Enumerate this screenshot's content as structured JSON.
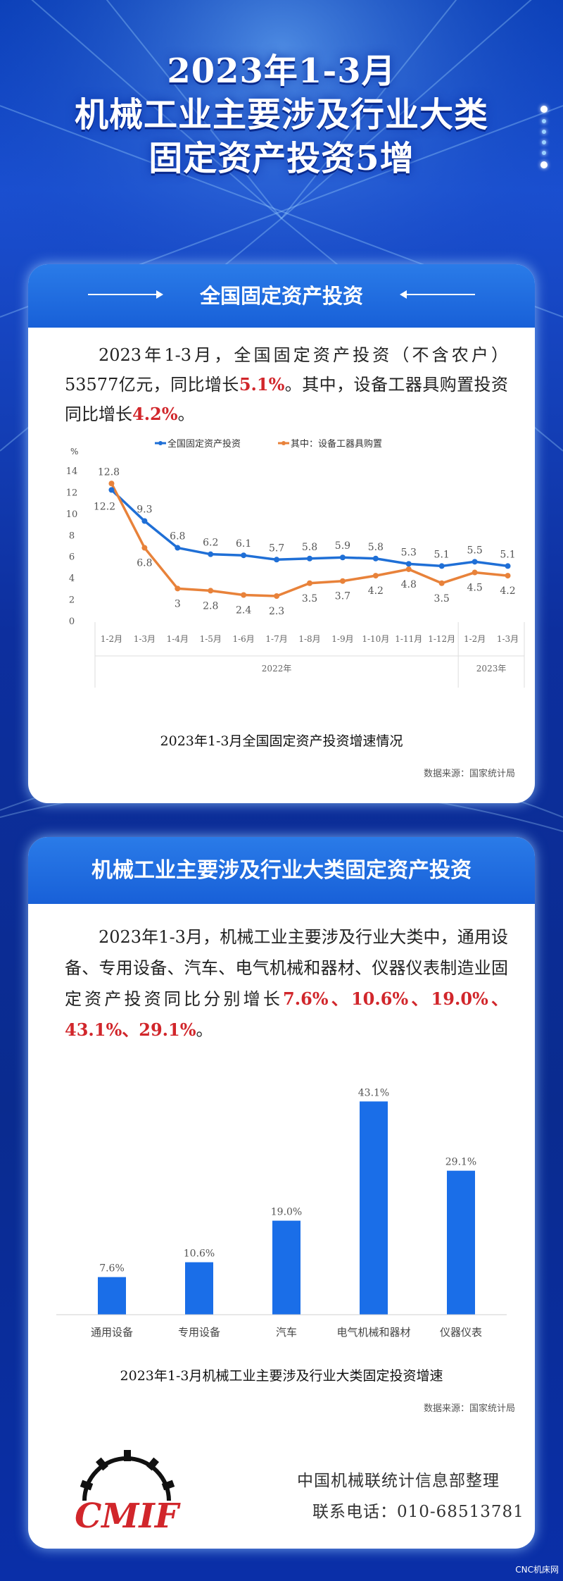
{
  "title": {
    "line1": "2023年1-3月",
    "line2": "机械工业主要涉及行业大类",
    "line3": "固定资产投资5增"
  },
  "section1": {
    "heading": "全国固定资产投资",
    "text_a": "2023年1-3月，全国固定资产投资（不含农户）53577亿元，同比增长",
    "value_a": "5.1%",
    "text_b": "。其中，设备工器具购置投资同比增长",
    "value_b": "4.2%",
    "text_c": "。",
    "caption": "2023年1-3月全国固定资产投资增速情况",
    "source": "数据来源：国家统计局"
  },
  "section2": {
    "heading": "机械工业主要涉及行业大类固定资产投资",
    "text_a": "2023年1-3月，机械工业主要涉及行业大类中，通用设备、专用设备、汽车、电气机械和器材、仪器仪表制造业固定资产投资同比分别增长",
    "values": "7.6%、10.6%、19.0%、43.1%、29.1%",
    "text_c": "。",
    "caption": "2023年1-3月机械工业主要涉及行业大类固定投资增速",
    "source": "数据来源：国家统计局"
  },
  "footer": {
    "org": "中国机械联统计信息部整理",
    "tel": "联系电话：010-68513781",
    "logo_text": "CMIF",
    "watermark": "CNC机床网"
  },
  "chart_data": [
    {
      "type": "line",
      "ylabel": "%",
      "ylim": [
        0,
        14
      ],
      "yticks": [
        0,
        2,
        4,
        6,
        8,
        10,
        12,
        14
      ],
      "categories": [
        "1-2月",
        "1-3月",
        "1-4月",
        "1-5月",
        "1-6月",
        "1-7月",
        "1-8月",
        "1-9月",
        "1-10月",
        "1-11月",
        "1-12月",
        "1-2月",
        "1-3月"
      ],
      "groups": [
        {
          "label": "2022年",
          "count": 11
        },
        {
          "label": "2023年",
          "count": 2
        }
      ],
      "legend_position": "top",
      "series": [
        {
          "name": "全国固定资产投资",
          "color": "#1f6fd6",
          "values": [
            12.2,
            9.3,
            6.8,
            6.2,
            6.1,
            5.7,
            5.8,
            5.9,
            5.8,
            5.3,
            5.1,
            5.5,
            5.1
          ]
        },
        {
          "name": "其中：设备工器具购置",
          "color": "#e8823a",
          "values": [
            12.8,
            6.8,
            3.0,
            2.8,
            2.4,
            2.3,
            3.5,
            3.7,
            4.2,
            4.8,
            3.5,
            4.5,
            4.2
          ]
        }
      ],
      "data_labels": {
        "blue": [
          "12.2",
          "9.3",
          "6.8",
          "6.2",
          "6.1",
          "5.7",
          "5.8",
          "5.9",
          "5.8",
          "5.3",
          "5.1",
          "5.5",
          "5.1"
        ],
        "orange": [
          "12.8",
          "6.8",
          "3",
          "2.8",
          "2.4",
          "2.3",
          "3.5",
          "3.7",
          "4.2",
          "4.8",
          "3.5",
          "4.5",
          "4.2"
        ]
      }
    },
    {
      "type": "bar",
      "categories": [
        "通用设备",
        "专用设备",
        "汽车",
        "电气机械和器材",
        "仪器仪表"
      ],
      "values": [
        7.6,
        10.6,
        19.0,
        43.1,
        29.1
      ],
      "labels": [
        "7.6%",
        "10.6%",
        "19.0%",
        "43.1%",
        "29.1%"
      ],
      "color": "#1a6ee8",
      "ylim": [
        0,
        45
      ]
    }
  ]
}
